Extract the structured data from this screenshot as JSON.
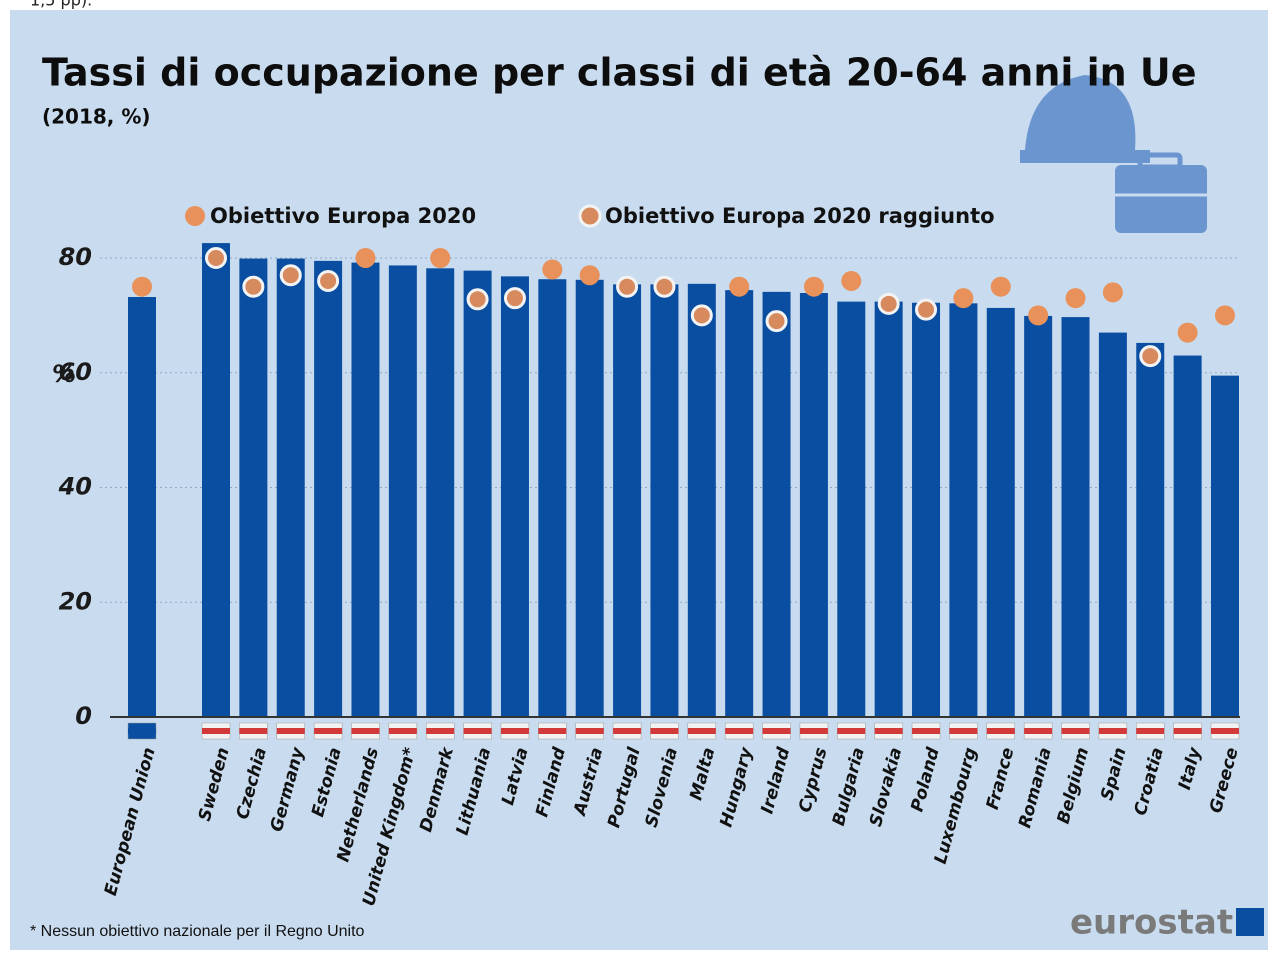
{
  "context_fragment": "1,5 pp).",
  "chart_data": {
    "type": "bar",
    "title": "Tassi di occupazione per classi di età 20-64 anni in Ue",
    "subtitle": "(2018, %)",
    "y_label": "%",
    "categories": [
      "European Union",
      "Sweden",
      "Czechia",
      "Germany",
      "Estonia",
      "Netherlands",
      "United Kingdom*",
      "Denmark",
      "Lithuania",
      "Latvia",
      "Finland",
      "Austria",
      "Portugal",
      "Slovenia",
      "Malta",
      "Hungary",
      "Ireland",
      "Cyprus",
      "Bulgaria",
      "Slovakia",
      "Poland",
      "Luxembourg",
      "France",
      "Romania",
      "Belgium",
      "Spain",
      "Croatia",
      "Italy",
      "Greece"
    ],
    "values": [
      73.2,
      82.6,
      79.9,
      79.9,
      79.5,
      79.2,
      78.7,
      78.2,
      77.8,
      76.8,
      76.3,
      76.2,
      75.4,
      75.4,
      75.5,
      74.4,
      74.1,
      73.9,
      72.4,
      72.4,
      72.2,
      72.1,
      71.3,
      69.9,
      69.7,
      67.0,
      65.2,
      63.0,
      59.5
    ],
    "color": "#0a4ea2",
    "series": [
      {
        "name": "Obiettivo Europa 2020",
        "color": "#e8915a",
        "values": [
          75,
          null,
          null,
          null,
          null,
          80,
          null,
          80,
          null,
          null,
          78,
          77,
          null,
          null,
          null,
          75,
          null,
          75,
          76,
          null,
          null,
          73,
          75,
          70,
          73,
          74,
          null,
          67,
          70
        ]
      },
      {
        "name": "Obiettivo Europa 2020 raggiunto",
        "color": "#d68a5e",
        "values": [
          null,
          80,
          75,
          77,
          76,
          null,
          null,
          null,
          72.8,
          73,
          null,
          null,
          75,
          75,
          70,
          null,
          69,
          null,
          null,
          72,
          71,
          null,
          null,
          null,
          null,
          null,
          62.9,
          null,
          null
        ]
      }
    ],
    "ylim": [
      0,
      82.6
    ],
    "yticks": [
      0,
      20,
      40,
      60,
      80
    ],
    "grid": true,
    "footnote": "* Nessun obiettivo nazionale per il Regno Unito",
    "source": "eurostat"
  }
}
